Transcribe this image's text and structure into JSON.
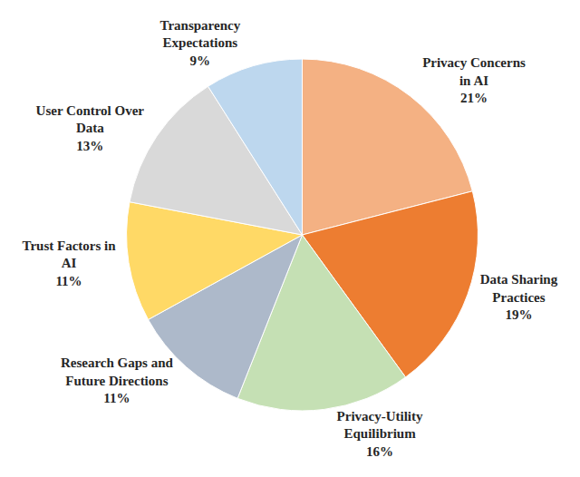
{
  "chart_data": {
    "type": "pie",
    "categories": [
      "Privacy Concerns in AI",
      "Data Sharing Practices",
      "Privacy-Utility Equilibrium",
      "Research Gaps and Future Directions",
      "Trust Factors in AI",
      "User Control Over Data",
      "Transparency Expectations"
    ],
    "values": [
      21,
      19,
      16,
      11,
      11,
      13,
      9
    ],
    "value_labels": [
      "21%",
      "19%",
      "16%",
      "11%",
      "11%",
      "13%",
      "9%"
    ],
    "colors": [
      "#f4b183",
      "#ed7d31",
      "#c5e0b4",
      "#adb9ca",
      "#ffd966",
      "#d9d9d9",
      "#bdd7ee"
    ],
    "data_labels": true
  }
}
